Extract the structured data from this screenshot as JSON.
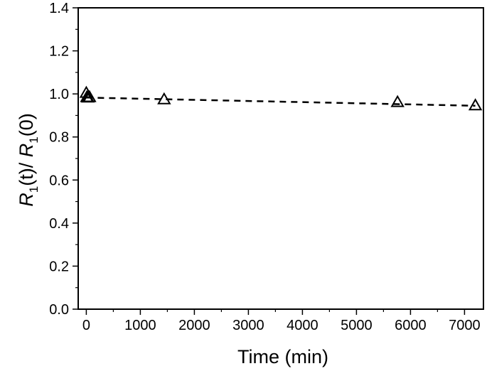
{
  "chart_data": {
    "type": "scatter",
    "xlabel": "Time (min)",
    "ylabel": {
      "parts": [
        {
          "text": "R",
          "italic": true
        },
        {
          "text": "1",
          "sub": true
        },
        {
          "text": "(t)/ "
        },
        {
          "text": "R",
          "italic": true
        },
        {
          "text": "1",
          "sub": true
        },
        {
          "text": "(0)"
        }
      ]
    },
    "xlim": [
      -150,
      7350
    ],
    "ylim": [
      0.0,
      1.4
    ],
    "xticks": [
      0,
      1000,
      2000,
      3000,
      4000,
      5000,
      6000,
      7000
    ],
    "xtick_labels": [
      "0",
      "1000",
      "2000",
      "3000",
      "4000",
      "5000",
      "6000",
      "7000"
    ],
    "yticks": [
      0.0,
      0.2,
      0.4,
      0.6,
      0.8,
      1.0,
      1.2,
      1.4
    ],
    "ytick_labels": [
      "0.0",
      "0.2",
      "0.4",
      "0.6",
      "0.8",
      "1.0",
      "1.2",
      "1.4"
    ],
    "grid": false,
    "series": [
      {
        "marker": "open-triangle",
        "color": "#000000",
        "x": [
          0,
          10,
          30,
          60,
          1440,
          5760,
          7200
        ],
        "y": [
          1.005,
          0.985,
          0.983,
          0.985,
          0.975,
          0.962,
          0.947
        ]
      }
    ],
    "fit_line": {
      "style": "dashed",
      "color": "#000000",
      "x": [
        0,
        7200
      ],
      "y": [
        0.983,
        0.945
      ]
    }
  }
}
